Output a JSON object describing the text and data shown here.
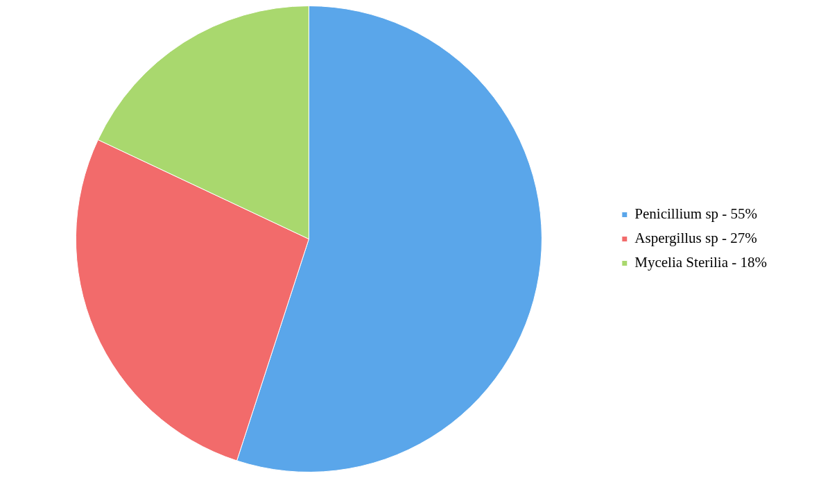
{
  "chart_data": {
    "type": "pie",
    "categories": [
      "Penicillium sp - 55%",
      "Aspergillus sp - 27%",
      "Mycelia Sterilia - 18%"
    ],
    "values": [
      55,
      27,
      18
    ],
    "colors": [
      "#5aa6ea",
      "#f26b6b",
      "#a9d86e"
    ],
    "legend": "right"
  }
}
